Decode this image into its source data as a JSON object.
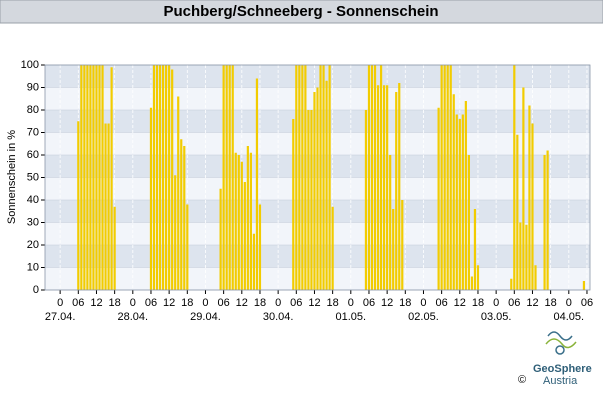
{
  "chart_data": {
    "type": "bar",
    "title": "Puchberg/Schneeberg - Sonnenschein",
    "ylabel": "Sonnenschein in %",
    "color": "#f2cc00",
    "band_colors": [
      "#dde4ee",
      "#f2f5fa"
    ],
    "grid": true,
    "xlim": [
      -5,
      175
    ],
    "ylim": [
      0,
      100
    ],
    "yticks": [
      0,
      10,
      20,
      30,
      40,
      50,
      60,
      70,
      80,
      90,
      100
    ],
    "xticks": [
      0,
      {
        "value": 6,
        "label": "06"
      },
      {
        "value": 12,
        "label": "12"
      },
      {
        "value": 18,
        "label": "18"
      },
      {
        "value": 24,
        "label": "0"
      },
      {
        "value": 30,
        "label": "06"
      },
      {
        "value": 36,
        "label": "12"
      },
      {
        "value": 42,
        "label": "18"
      },
      {
        "value": 48,
        "label": "0"
      },
      {
        "value": 54,
        "label": "06"
      },
      {
        "value": 60,
        "label": "12"
      },
      {
        "value": 66,
        "label": "18"
      },
      {
        "value": 72,
        "label": "0"
      },
      {
        "value": 78,
        "label": "06"
      },
      {
        "value": 84,
        "label": "12"
      },
      {
        "value": 90,
        "label": "18"
      },
      {
        "value": 96,
        "label": "0"
      },
      {
        "value": 102,
        "label": "06"
      },
      {
        "value": 108,
        "label": "12"
      },
      {
        "value": 114,
        "label": "18"
      },
      {
        "value": 120,
        "label": "0"
      },
      {
        "value": 126,
        "label": "06"
      },
      {
        "value": 132,
        "label": "12"
      },
      {
        "value": 138,
        "label": "18"
      },
      {
        "value": 144,
        "label": "0"
      },
      {
        "value": 150,
        "label": "06"
      },
      {
        "value": 156,
        "label": "12"
      },
      {
        "value": 162,
        "label": "18"
      },
      {
        "value": 168,
        "label": "0"
      },
      {
        "value": 174,
        "label": "06"
      }
    ],
    "date_labels": [
      {
        "value": 0,
        "label": "27.04."
      },
      {
        "value": 24,
        "label": "28.04."
      },
      {
        "value": 48,
        "label": "29.04."
      },
      {
        "value": 72,
        "label": "30.04."
      },
      {
        "value": 96,
        "label": "01.05."
      },
      {
        "value": 120,
        "label": "02.05."
      },
      {
        "value": 144,
        "label": "03.05."
      },
      {
        "value": 168,
        "label": "04.05."
      }
    ],
    "x": [
      6,
      7,
      8,
      9,
      10,
      11,
      12,
      13,
      14,
      15,
      16,
      17,
      18,
      30,
      31,
      32,
      33,
      34,
      35,
      36,
      37,
      38,
      39,
      40,
      41,
      42,
      53,
      54,
      55,
      56,
      57,
      58,
      59,
      60,
      61,
      62,
      63,
      64,
      65,
      66,
      77,
      78,
      79,
      80,
      81,
      82,
      83,
      84,
      85,
      86,
      87,
      88,
      89,
      90,
      101,
      102,
      103,
      104,
      105,
      106,
      107,
      108,
      109,
      110,
      111,
      112,
      113,
      125,
      126,
      127,
      128,
      129,
      130,
      131,
      132,
      133,
      134,
      135,
      136,
      137,
      138,
      149,
      150,
      151,
      152,
      153,
      154,
      155,
      156,
      157,
      160,
      161,
      173
    ],
    "values": [
      75,
      100,
      100,
      100,
      100,
      100,
      100,
      100,
      100,
      74,
      74,
      99,
      37,
      81,
      100,
      100,
      100,
      100,
      100,
      100,
      98,
      51,
      86,
      67,
      64,
      38,
      45,
      100,
      100,
      100,
      100,
      61,
      60,
      57,
      48,
      64,
      61,
      25,
      94,
      38,
      76,
      100,
      100,
      100,
      100,
      80,
      80,
      88,
      90,
      100,
      100,
      93,
      100,
      37,
      80,
      100,
      100,
      100,
      91,
      100,
      91,
      91,
      60,
      36,
      88,
      92,
      40,
      81,
      100,
      100,
      100,
      100,
      87,
      78,
      76,
      78,
      84,
      60,
      6,
      36,
      11,
      5,
      100,
      69,
      30,
      90,
      29,
      82,
      74,
      11,
      60,
      62,
      4
    ]
  },
  "logo": {
    "name": "GeoSphere",
    "subname": "Austria",
    "copyright": "©"
  }
}
